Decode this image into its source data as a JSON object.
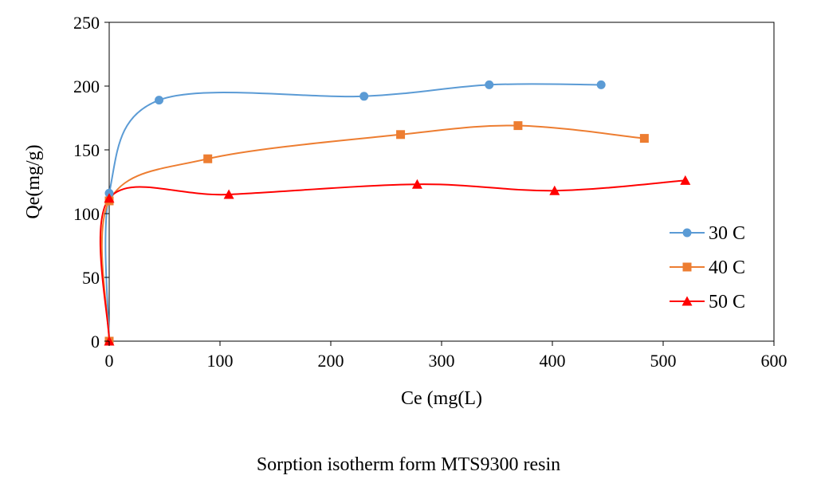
{
  "chart_data": {
    "type": "scatter",
    "title": "",
    "xlabel": "Ce (mg(L)",
    "ylabel": "Qe(mg/g)",
    "xlim": [
      0,
      600
    ],
    "ylim": [
      0,
      250
    ],
    "xticks": [
      0,
      100,
      200,
      300,
      400,
      500,
      600
    ],
    "yticks": [
      0,
      50,
      100,
      150,
      200,
      250
    ],
    "grid": false,
    "legend_position": "right",
    "series": [
      {
        "name": "30 C",
        "color": "#5B9BD5",
        "marker": "circle",
        "x": [
          0,
          0,
          45,
          230,
          343,
          444
        ],
        "y": [
          0,
          116,
          189,
          192,
          201,
          201
        ]
      },
      {
        "name": "40 C",
        "color": "#ED7D31",
        "marker": "square",
        "x": [
          0,
          0,
          89,
          263,
          369,
          483
        ],
        "y": [
          0,
          110,
          143,
          162,
          169,
          159
        ]
      },
      {
        "name": "50 C",
        "color": "#FF0000",
        "marker": "triangle",
        "x": [
          0,
          0,
          108,
          278,
          402,
          520
        ],
        "y": [
          0,
          112,
          115,
          123,
          118,
          126
        ]
      }
    ]
  },
  "caption": "Sorption isotherm form MTS9300 resin"
}
